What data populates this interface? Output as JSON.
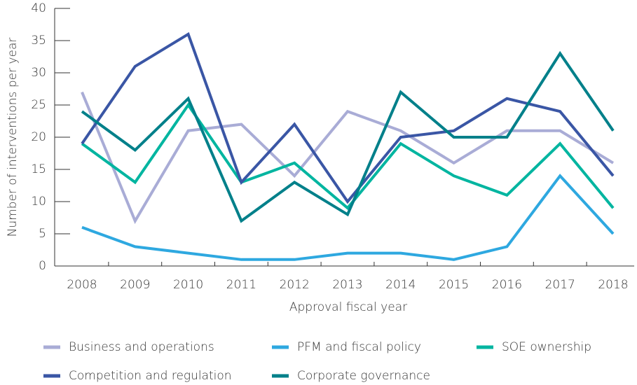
{
  "chart_data": {
    "type": "line",
    "x_label": "Approval fiscal year",
    "y_label": "Number of interventions per year",
    "categories": [
      "2008",
      "2009",
      "2010",
      "2011",
      "2012",
      "2013",
      "2014",
      "2015",
      "2016",
      "2017",
      "2018"
    ],
    "series": [
      {
        "name": "Business and operations",
        "color": "#a9acd6",
        "values": [
          27,
          7,
          21,
          22,
          14,
          24,
          21,
          16,
          21,
          21,
          16
        ]
      },
      {
        "name": "PFM and fiscal policy",
        "color": "#2ea8e0",
        "values": [
          6,
          3,
          2,
          1,
          1,
          2,
          2,
          1,
          3,
          14,
          5
        ]
      },
      {
        "name": "SOE ownership",
        "color": "#00b5a0",
        "values": [
          19,
          13,
          25,
          13,
          16,
          9,
          19,
          14,
          11,
          19,
          9
        ]
      },
      {
        "name": "Competition and regulation",
        "color": "#3a56a5",
        "values": [
          19,
          31,
          36,
          13,
          22,
          10,
          20,
          21,
          26,
          24,
          14
        ]
      },
      {
        "name": "Corporate governance",
        "color": "#00808a",
        "values": [
          24,
          18,
          26,
          7,
          13,
          8,
          27,
          20,
          20,
          33,
          21
        ]
      }
    ],
    "ylim": [
      0,
      40
    ],
    "yticks": [
      0,
      5,
      10,
      15,
      20,
      25,
      30,
      35,
      40
    ]
  }
}
